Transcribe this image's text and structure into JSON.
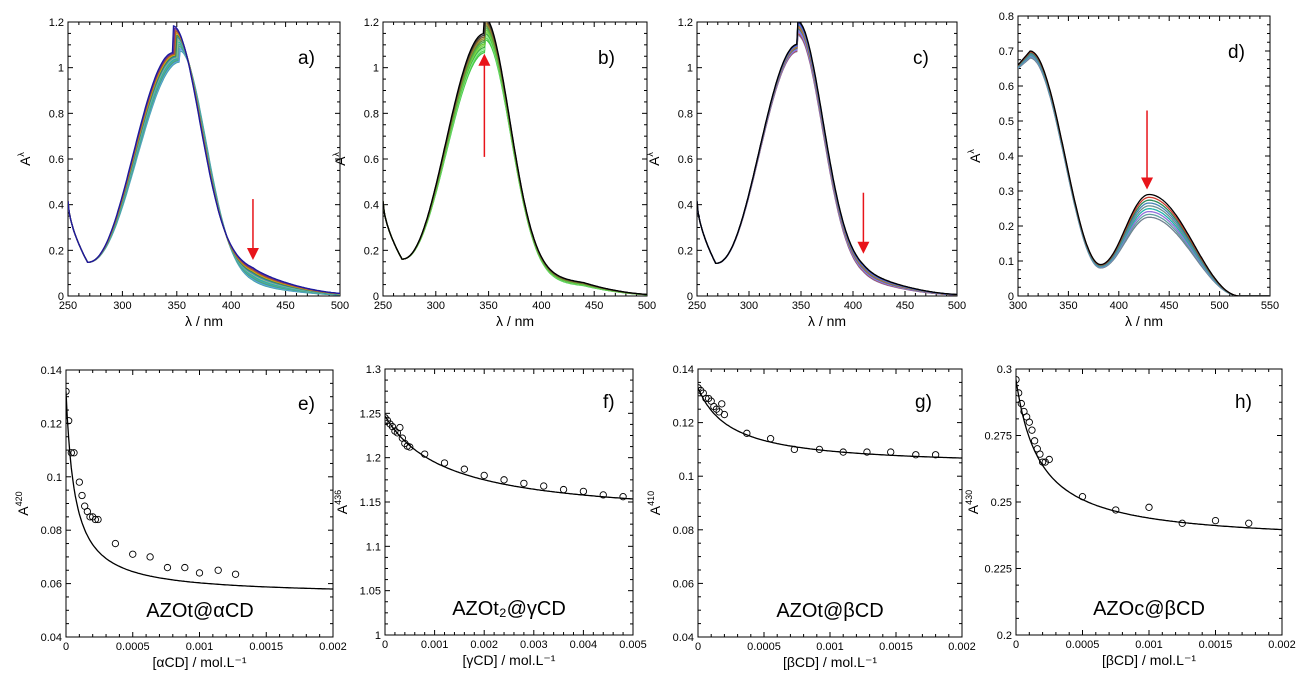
{
  "chart_data": [
    {
      "id": "a",
      "type": "line",
      "panel_label": "a)",
      "xlabel": "λ / nm",
      "ylabel_main": "A",
      "ylabel_sup": "λ",
      "xlim": [
        250,
        500
      ],
      "ylim": [
        0,
        1.3
      ],
      "xticks": [
        "250",
        "300",
        "350",
        "400",
        "450",
        "500"
      ],
      "yticks": [
        "0",
        "0.2",
        "0.4",
        "0.6",
        "0.8",
        "1",
        "1.2"
      ],
      "grid": false,
      "family": {
        "count": 12,
        "colors": [
          "#1a1a9e",
          "#6a2c8e",
          "#b5651d",
          "#d4a017",
          "#2e8b57",
          "#4682b4",
          "#8fbc8f",
          "#20b2aa",
          "#5f9ea0",
          "#3cb371",
          "#6495ed",
          "#48a9a6"
        ],
        "x0": 250,
        "y0": 0.45,
        "min_x": 268,
        "min_y": 0.16,
        "peak_x_first": 347,
        "peak_x_last": 353,
        "peak_y_first": 1.155,
        "peak_y_last": 1.11,
        "shoulder_x": 420,
        "shoulder_y_first": 0.19,
        "shoulder_y_last": 0.08,
        "end_x": 500,
        "end_y_first": 0.025,
        "end_y_last": 0.01
      },
      "arrow": {
        "direction": "down",
        "x": 420,
        "y_from": 0.46,
        "y_to": 0.18,
        "color": "#e8141a"
      }
    },
    {
      "id": "b",
      "type": "line",
      "panel_label": "b)",
      "xlabel": "λ / nm",
      "ylabel_main": "A",
      "ylabel_sup": "λ",
      "xlim": [
        250,
        500
      ],
      "ylim": [
        0,
        1.3
      ],
      "xticks": [
        "250",
        "300",
        "350",
        "400",
        "450",
        "500"
      ],
      "yticks": [
        "0",
        "0.2",
        "0.4",
        "0.6",
        "0.8",
        "1",
        "1.2"
      ],
      "grid": false,
      "family": {
        "count": 12,
        "colors": [
          "#000000",
          "#3a3a3a",
          "#7a5c2e",
          "#9e8b2a",
          "#5f8f3a",
          "#4caf50",
          "#66cc33",
          "#7fd34e",
          "#3cb043",
          "#90ee90",
          "#55d455",
          "#44c444"
        ],
        "x0": 250,
        "y0": 0.45,
        "min_x": 268,
        "min_y": 0.175,
        "peak_x_first": 346,
        "peak_x_last": 347,
        "peak_y_first": 1.245,
        "peak_y_last": 1.155,
        "shoulder_x": 440,
        "shoulder_y_first": 0.12,
        "shoulder_y_last": 0.09,
        "end_x": 500,
        "end_y_first": 0.015,
        "end_y_last": 0.012
      },
      "arrow": {
        "direction": "up",
        "x": 346,
        "y_from": 0.66,
        "y_to": 1.14,
        "color": "#e8141a"
      }
    },
    {
      "id": "c",
      "type": "line",
      "panel_label": "c)",
      "xlabel": "λ / nm",
      "ylabel_main": "A",
      "ylabel_sup": "λ",
      "xlim": [
        250,
        500
      ],
      "ylim": [
        0,
        1.3
      ],
      "xticks": [
        "250",
        "300",
        "350",
        "400",
        "450",
        "500"
      ],
      "yticks": [
        "0",
        "0.2",
        "0.4",
        "0.6",
        "0.8",
        "1",
        "1.2"
      ],
      "grid": false,
      "family": {
        "count": 12,
        "colors": [
          "#000000",
          "#1f3b8a",
          "#7b68ee",
          "#4682b4",
          "#b8860b",
          "#cd5c5c",
          "#2e8b57",
          "#9370db",
          "#6495ed",
          "#ba55d3",
          "#a0522d",
          "#8a7fb8"
        ],
        "x0": 250,
        "y0": 0.45,
        "min_x": 268,
        "min_y": 0.155,
        "peak_x_first": 347,
        "peak_x_last": 347,
        "peak_y_first": 1.195,
        "peak_y_last": 1.16,
        "shoulder_x": 410,
        "shoulder_y_first": 0.17,
        "shoulder_y_last": 0.12,
        "end_x": 500,
        "end_y_first": 0.015,
        "end_y_last": 0.01
      },
      "arrow": {
        "direction": "down",
        "x": 410,
        "y_from": 0.49,
        "y_to": 0.21,
        "color": "#e8141a"
      }
    },
    {
      "id": "d",
      "type": "line",
      "panel_label": "d)",
      "xlabel": "λ / nm",
      "ylabel_main": "A",
      "ylabel_sup": "λ",
      "xlim": [
        300,
        550
      ],
      "ylim": [
        0,
        0.8
      ],
      "xticks": [
        "300",
        "350",
        "400",
        "450",
        "500",
        "550"
      ],
      "yticks": [
        "0",
        "0.1",
        "0.2",
        "0.3",
        "0.4",
        "0.5",
        "0.6",
        "0.7",
        "0.8"
      ],
      "grid": false,
      "family": {
        "count": 9,
        "colors": [
          "#000000",
          "#cd3b2f",
          "#2e8b57",
          "#4682b4",
          "#6a8f8f",
          "#20b2aa",
          "#9370db",
          "#5f9ea0",
          "#708090"
        ],
        "x0": 300,
        "y0_first": 0.66,
        "y0_last": 0.65,
        "peak1_x": 312,
        "peak1_y_first": 0.7,
        "peak1_y_last": 0.68,
        "min_x": 382,
        "min_y_first": 0.09,
        "min_y_last": 0.08,
        "peak2_x": 430,
        "peak2_y_first": 0.29,
        "peak2_y_last": 0.225,
        "end_x": 550,
        "end_y": 0.0
      },
      "arrow": {
        "direction": "down",
        "x": 428,
        "y_from": 0.53,
        "y_to": 0.31,
        "color": "#e8141a"
      }
    },
    {
      "id": "e",
      "type": "scatter",
      "panel_label": "e)",
      "compound_label": "AZOt@αCD",
      "xlabel": "[αCD] / mol.L⁻¹",
      "ylabel_main": "A",
      "ylabel_sup": "420",
      "xlim": [
        0,
        0.002
      ],
      "ylim": [
        0.04,
        0.14
      ],
      "xticks": [
        "0",
        "0.0005",
        "0.001",
        "0.0015",
        "0.002"
      ],
      "yticks": [
        "0.04",
        "0.06",
        "0.08",
        "0.1",
        "0.12",
        "0.14"
      ],
      "grid": false,
      "points": [
        [
          0.0,
          0.132
        ],
        [
          2e-05,
          0.121
        ],
        [
          4e-05,
          0.109
        ],
        [
          6e-05,
          0.109
        ],
        [
          0.0001,
          0.098
        ],
        [
          0.00012,
          0.093
        ],
        [
          0.00014,
          0.089
        ],
        [
          0.00016,
          0.087
        ],
        [
          0.00018,
          0.085
        ],
        [
          0.0002,
          0.085
        ],
        [
          0.00022,
          0.084
        ],
        [
          0.00024,
          0.084
        ],
        [
          0.00037,
          0.075
        ],
        [
          0.0005,
          0.071
        ],
        [
          0.00063,
          0.07
        ],
        [
          0.00076,
          0.066
        ],
        [
          0.00089,
          0.066
        ],
        [
          0.001,
          0.064
        ],
        [
          0.00114,
          0.065
        ],
        [
          0.00127,
          0.0635
        ]
      ],
      "fit": {
        "A0": 0.132,
        "Ainf": 0.0555,
        "K": 15000
      }
    },
    {
      "id": "f",
      "type": "scatter",
      "panel_label": "f)",
      "compound_label": "AZOt₂@γCD",
      "xlabel": "[γCD] / mol.L⁻¹",
      "ylabel_main": "A",
      "ylabel_sup": "436",
      "xlim": [
        0,
        0.005
      ],
      "ylim": [
        1.0,
        1.3
      ],
      "xticks": [
        "0",
        "0.001",
        "0.002",
        "0.003",
        "0.004",
        "0.005"
      ],
      "yticks": [
        "1",
        "1.05",
        "1.1",
        "1.15",
        "1.2",
        "1.25",
        "1.3"
      ],
      "grid": false,
      "points": [
        [
          0.0,
          1.245
        ],
        [
          5e-05,
          1.242
        ],
        [
          0.0001,
          1.238
        ],
        [
          0.00015,
          1.235
        ],
        [
          0.0002,
          1.23
        ],
        [
          0.00025,
          1.228
        ],
        [
          0.0003,
          1.234
        ],
        [
          0.00035,
          1.222
        ],
        [
          0.0004,
          1.216
        ],
        [
          0.00045,
          1.213
        ],
        [
          0.0005,
          1.212
        ],
        [
          0.0008,
          1.204
        ],
        [
          0.0012,
          1.194
        ],
        [
          0.0016,
          1.187
        ],
        [
          0.002,
          1.18
        ],
        [
          0.0024,
          1.175
        ],
        [
          0.0028,
          1.171
        ],
        [
          0.0032,
          1.168
        ],
        [
          0.0036,
          1.164
        ],
        [
          0.004,
          1.162
        ],
        [
          0.0044,
          1.158
        ],
        [
          0.0048,
          1.156
        ]
      ],
      "fit": {
        "A0": 1.247,
        "Ainf": 1.13,
        "K": 800
      }
    },
    {
      "id": "g",
      "type": "scatter",
      "panel_label": "g)",
      "compound_label": "AZOt@βCD",
      "xlabel": "[βCD] / mol.L⁻¹",
      "ylabel_main": "A",
      "ylabel_sup": "410",
      "xlim": [
        0,
        0.002
      ],
      "ylim": [
        0.04,
        0.14
      ],
      "xticks": [
        "0",
        "0.0005",
        "0.001",
        "0.0015",
        "0.002"
      ],
      "yticks": [
        "0.04",
        "0.06",
        "0.08",
        "0.1",
        "0.12",
        "0.14"
      ],
      "grid": false,
      "points": [
        [
          0.0,
          0.133
        ],
        [
          2e-05,
          0.132
        ],
        [
          4e-05,
          0.131
        ],
        [
          6e-05,
          0.129
        ],
        [
          8e-05,
          0.129
        ],
        [
          0.0001,
          0.128
        ],
        [
          0.00012,
          0.126
        ],
        [
          0.00014,
          0.125
        ],
        [
          0.00016,
          0.124
        ],
        [
          0.00018,
          0.127
        ],
        [
          0.0002,
          0.123
        ],
        [
          0.00037,
          0.116
        ],
        [
          0.00055,
          0.114
        ],
        [
          0.00073,
          0.11
        ],
        [
          0.00092,
          0.11
        ],
        [
          0.0011,
          0.109
        ],
        [
          0.00128,
          0.109
        ],
        [
          0.00146,
          0.109
        ],
        [
          0.00165,
          0.108
        ],
        [
          0.0018,
          0.108
        ]
      ],
      "fit": {
        "A0": 0.133,
        "Ainf": 0.1035,
        "K": 4000
      }
    },
    {
      "id": "h",
      "type": "scatter",
      "panel_label": "h)",
      "compound_label": "AZOc@βCD",
      "xlabel": "[βCD] / mol.L⁻¹",
      "ylabel_main": "A",
      "ylabel_sup": "430",
      "xlim": [
        0,
        0.002
      ],
      "ylim": [
        0.2,
        0.3
      ],
      "xticks": [
        "0",
        "0.0005",
        "0.001",
        "0.0015",
        "0.002"
      ],
      "yticks": [
        "0.2",
        "0.225",
        "0.25",
        "0.275",
        "0.3"
      ],
      "grid": false,
      "points": [
        [
          0.0,
          0.296
        ],
        [
          2e-05,
          0.291
        ],
        [
          4e-05,
          0.287
        ],
        [
          6e-05,
          0.284
        ],
        [
          8e-05,
          0.282
        ],
        [
          0.0001,
          0.28
        ],
        [
          0.00012,
          0.277
        ],
        [
          0.00014,
          0.273
        ],
        [
          0.00016,
          0.27
        ],
        [
          0.00018,
          0.268
        ],
        [
          0.0002,
          0.265
        ],
        [
          0.00022,
          0.265
        ],
        [
          0.00025,
          0.266
        ],
        [
          0.0005,
          0.252
        ],
        [
          0.00075,
          0.247
        ],
        [
          0.001,
          0.248
        ],
        [
          0.00125,
          0.242
        ],
        [
          0.0015,
          0.243
        ],
        [
          0.00175,
          0.242
        ]
      ],
      "fit": {
        "A0": 0.296,
        "Ainf": 0.2345,
        "K": 5500
      }
    }
  ]
}
